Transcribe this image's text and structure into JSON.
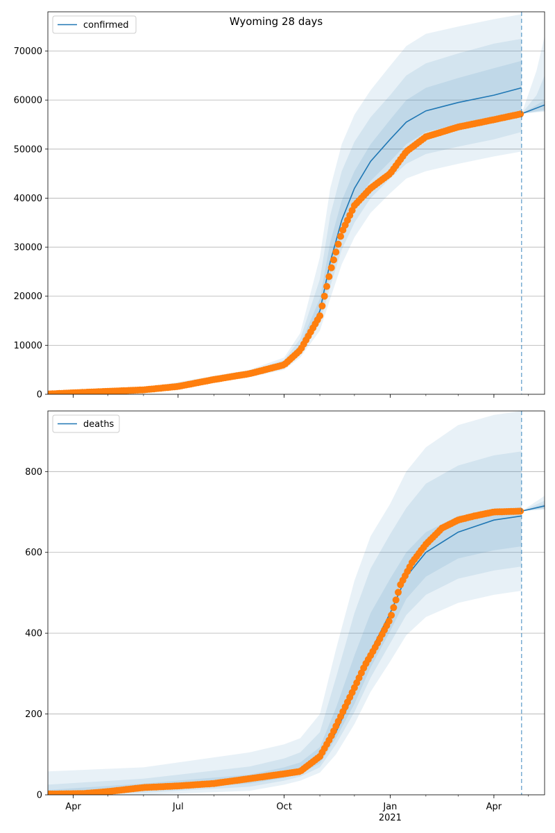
{
  "chart_data": [
    {
      "type": "line",
      "title": "Wyoming 28 days",
      "legend": {
        "placement": "top-left",
        "entries": [
          "confirmed"
        ]
      },
      "grid": "y",
      "xlim": [
        "2020-03-10",
        "2021-05-15"
      ],
      "ylim": [
        0,
        78000
      ],
      "yticks": [
        0,
        10000,
        20000,
        30000,
        40000,
        50000,
        60000,
        70000
      ],
      "forecast_start": "2021-04-25",
      "colors": {
        "line": "#1f77b4",
        "observed": "#ff7f0e",
        "band": "#1f77b4",
        "divider": "#1f77b4"
      },
      "series": [
        {
          "name": "confirmed",
          "x": [
            "2020-03-10",
            "2020-04-01",
            "2020-05-01",
            "2020-06-01",
            "2020-07-01",
            "2020-08-01",
            "2020-09-01",
            "2020-10-01",
            "2020-10-15",
            "2020-11-01",
            "2020-11-10",
            "2020-11-20",
            "2020-12-01",
            "2020-12-15",
            "2021-01-01",
            "2021-01-15",
            "2021-02-01",
            "2021-03-01",
            "2021-04-01",
            "2021-04-25"
          ],
          "values": [
            50,
            300,
            600,
            900,
            1600,
            3000,
            4200,
            6200,
            9500,
            17000,
            27000,
            35500,
            42000,
            47500,
            52000,
            55500,
            57800,
            59500,
            61000,
            62500
          ]
        },
        {
          "name": "forecast",
          "x": [
            "2021-04-25",
            "2021-05-15"
          ],
          "values": [
            57200,
            59000
          ]
        }
      ],
      "observed": {
        "x": [
          "2020-03-10",
          "2020-04-01",
          "2020-05-01",
          "2020-06-01",
          "2020-07-01",
          "2020-08-01",
          "2020-09-01",
          "2020-10-01",
          "2020-10-15",
          "2020-11-01",
          "2020-11-10",
          "2020-11-20",
          "2020-12-01",
          "2020-12-15",
          "2021-01-01",
          "2021-01-15",
          "2021-02-01",
          "2021-03-01",
          "2021-04-01",
          "2021-04-25"
        ],
        "values": [
          50,
          300,
          600,
          900,
          1600,
          3000,
          4200,
          6000,
          9000,
          16000,
          25000,
          33000,
          38500,
          42000,
          45000,
          49500,
          52500,
          54500,
          56000,
          57200
        ]
      },
      "bands": [
        {
          "x": [
            "2020-03-10",
            "2020-06-01",
            "2020-09-01",
            "2020-10-01",
            "2020-10-15",
            "2020-11-01",
            "2020-11-10",
            "2020-11-20",
            "2020-12-01",
            "2020-12-15",
            "2021-01-01",
            "2021-01-15",
            "2021-02-01",
            "2021-03-01",
            "2021-04-01",
            "2021-04-25"
          ],
          "low": [
            0,
            500,
            3500,
            5000,
            7500,
            13000,
            19500,
            26500,
            32000,
            37000,
            41000,
            44000,
            45500,
            47000,
            48500,
            49500
          ],
          "high": [
            200,
            1300,
            5000,
            7500,
            12500,
            28000,
            42000,
            51000,
            57000,
            62000,
            67000,
            71000,
            73500,
            75000,
            76500,
            77500
          ]
        },
        {
          "x": [
            "2020-03-10",
            "2020-06-01",
            "2020-09-01",
            "2020-10-01",
            "2020-10-15",
            "2020-11-01",
            "2020-11-10",
            "2020-11-20",
            "2020-12-01",
            "2020-12-15",
            "2021-01-01",
            "2021-01-15",
            "2021-02-01",
            "2021-03-01",
            "2021-04-01",
            "2021-04-25"
          ],
          "low": [
            0,
            650,
            3800,
            5500,
            8200,
            14500,
            22000,
            29500,
            35000,
            40000,
            44000,
            47000,
            49000,
            50500,
            52000,
            53500
          ],
          "high": [
            150,
            1150,
            4700,
            7000,
            11300,
            23500,
            36500,
            45500,
            51500,
            56500,
            61000,
            65000,
            67500,
            69500,
            71500,
            72500
          ]
        },
        {
          "x": [
            "2020-03-10",
            "2020-06-01",
            "2020-09-01",
            "2020-10-01",
            "2020-10-15",
            "2020-11-01",
            "2020-11-10",
            "2020-11-20",
            "2020-12-01",
            "2020-12-15",
            "2021-01-01",
            "2021-01-15",
            "2021-02-01",
            "2021-03-01",
            "2021-04-01",
            "2021-04-25"
          ],
          "low": [
            20,
            780,
            4000,
            5900,
            8800,
            15800,
            24500,
            32500,
            38500,
            43500,
            47500,
            51000,
            53500,
            55000,
            56500,
            57500
          ],
          "high": [
            100,
            1000,
            4450,
            6500,
            10200,
            19500,
            31000,
            39500,
            45500,
            51000,
            56000,
            60000,
            62500,
            64500,
            66500,
            68000
          ]
        }
      ],
      "forecast_bands": [
        {
          "x": [
            "2021-04-25",
            "2021-05-08",
            "2021-05-15"
          ],
          "low": [
            57200,
            57500,
            57600
          ],
          "high": [
            57200,
            66000,
            73000
          ]
        },
        {
          "x": [
            "2021-04-25",
            "2021-05-08",
            "2021-05-15"
          ],
          "low": [
            57200,
            57600,
            57800
          ],
          "high": [
            57200,
            61000,
            65000
          ]
        },
        {
          "x": [
            "2021-04-25",
            "2021-05-15"
          ],
          "low": [
            57200,
            58000
          ],
          "high": [
            57200,
            60000
          ]
        }
      ],
      "xticks": [
        {
          "date": "2020-04-01",
          "label": "Apr"
        },
        {
          "date": "2020-07-01",
          "label": "Jul"
        },
        {
          "date": "2020-10-01",
          "label": "Oct"
        },
        {
          "date": "2021-01-01",
          "label": "Jan"
        },
        {
          "date": "2021-04-01",
          "label": "Apr"
        }
      ],
      "year_label": {
        "date": "2021-01-01",
        "label": "2021"
      },
      "show_xtick_labels": false
    },
    {
      "type": "line",
      "title": "",
      "legend": {
        "placement": "top-left",
        "entries": [
          "deaths"
        ]
      },
      "grid": "y",
      "xlim": [
        "2020-03-10",
        "2021-05-15"
      ],
      "ylim": [
        0,
        950
      ],
      "yticks": [
        0,
        200,
        400,
        600,
        800
      ],
      "forecast_start": "2021-04-25",
      "colors": {
        "line": "#1f77b4",
        "observed": "#ff7f0e",
        "band": "#1f77b4",
        "divider": "#1f77b4"
      },
      "series": [
        {
          "name": "deaths",
          "x": [
            "2020-03-10",
            "2020-05-01",
            "2020-07-01",
            "2020-09-01",
            "2020-10-01",
            "2020-10-15",
            "2020-11-01",
            "2020-11-15",
            "2020-12-01",
            "2020-12-15",
            "2021-01-01",
            "2021-01-15",
            "2021-02-01",
            "2021-03-01",
            "2021-04-01",
            "2021-04-25"
          ],
          "values": [
            2,
            8,
            22,
            38,
            52,
            62,
            88,
            155,
            255,
            355,
            450,
            540,
            600,
            650,
            680,
            690
          ]
        },
        {
          "name": "forecast",
          "x": [
            "2021-04-25",
            "2021-05-15"
          ],
          "values": [
            702,
            715
          ]
        }
      ],
      "observed": {
        "x": [
          "2020-03-10",
          "2020-04-10",
          "2020-05-01",
          "2020-06-01",
          "2020-07-01",
          "2020-08-01",
          "2020-09-01",
          "2020-10-01",
          "2020-10-15",
          "2020-11-01",
          "2020-11-10",
          "2020-11-20",
          "2020-12-01",
          "2020-12-10",
          "2020-12-20",
          "2021-01-01",
          "2021-01-10",
          "2021-01-20",
          "2021-02-01",
          "2021-02-15",
          "2021-03-01",
          "2021-03-15",
          "2021-04-01",
          "2021-04-25"
        ],
        "values": [
          2,
          3,
          8,
          18,
          22,
          28,
          40,
          52,
          58,
          95,
          140,
          200,
          265,
          320,
          370,
          435,
          520,
          575,
          620,
          660,
          680,
          690,
          700,
          702
        ]
      },
      "bands": [
        {
          "x": [
            "2020-03-10",
            "2020-06-01",
            "2020-09-01",
            "2020-10-01",
            "2020-10-15",
            "2020-11-01",
            "2020-11-15",
            "2020-12-01",
            "2020-12-15",
            "2021-01-01",
            "2021-01-15",
            "2021-02-01",
            "2021-03-01",
            "2021-04-01",
            "2021-04-25"
          ],
          "low": [
            0,
            0,
            10,
            25,
            35,
            55,
            100,
            175,
            255,
            330,
            395,
            440,
            475,
            495,
            505
          ],
          "high": [
            58,
            68,
            105,
            125,
            140,
            200,
            360,
            530,
            640,
            720,
            800,
            860,
            915,
            940,
            950
          ]
        },
        {
          "x": [
            "2020-03-10",
            "2020-06-01",
            "2020-09-01",
            "2020-10-01",
            "2020-10-15",
            "2020-11-01",
            "2020-11-15",
            "2020-12-01",
            "2020-12-15",
            "2021-01-01",
            "2021-01-15",
            "2021-02-01",
            "2021-03-01",
            "2021-04-01",
            "2021-04-25"
          ],
          "low": [
            0,
            5,
            20,
            35,
            45,
            68,
            125,
            205,
            290,
            375,
            445,
            495,
            535,
            555,
            565
          ],
          "high": [
            25,
            40,
            70,
            90,
            105,
            155,
            290,
            450,
            560,
            645,
            710,
            770,
            815,
            840,
            850
          ]
        },
        {
          "x": [
            "2020-03-10",
            "2020-06-01",
            "2020-09-01",
            "2020-10-01",
            "2020-10-15",
            "2020-11-01",
            "2020-11-15",
            "2020-12-01",
            "2020-12-15",
            "2021-01-01",
            "2021-01-15",
            "2021-02-01",
            "2021-03-01",
            "2021-04-01",
            "2021-04-25"
          ],
          "low": [
            0,
            10,
            28,
            42,
            52,
            78,
            140,
            225,
            315,
            405,
            485,
            540,
            585,
            605,
            615
          ],
          "high": [
            12,
            28,
            50,
            68,
            80,
            118,
            215,
            345,
            450,
            535,
            600,
            650,
            690,
            705,
            712
          ]
        }
      ],
      "forecast_bands": [
        {
          "x": [
            "2021-04-25",
            "2021-05-15"
          ],
          "low": [
            702,
            706
          ],
          "high": [
            702,
            740
          ]
        },
        {
          "x": [
            "2021-04-25",
            "2021-05-15"
          ],
          "low": [
            702,
            708
          ],
          "high": [
            702,
            728
          ]
        },
        {
          "x": [
            "2021-04-25",
            "2021-05-15"
          ],
          "low": [
            702,
            710
          ],
          "high": [
            702,
            720
          ]
        }
      ],
      "xticks": [
        {
          "date": "2020-04-01",
          "label": "Apr"
        },
        {
          "date": "2020-07-01",
          "label": "Jul"
        },
        {
          "date": "2020-10-01",
          "label": "Oct"
        },
        {
          "date": "2021-01-01",
          "label": "Jan"
        },
        {
          "date": "2021-04-01",
          "label": "Apr"
        }
      ],
      "year_label": {
        "date": "2021-01-01",
        "label": "2021"
      },
      "show_xtick_labels": true
    }
  ]
}
